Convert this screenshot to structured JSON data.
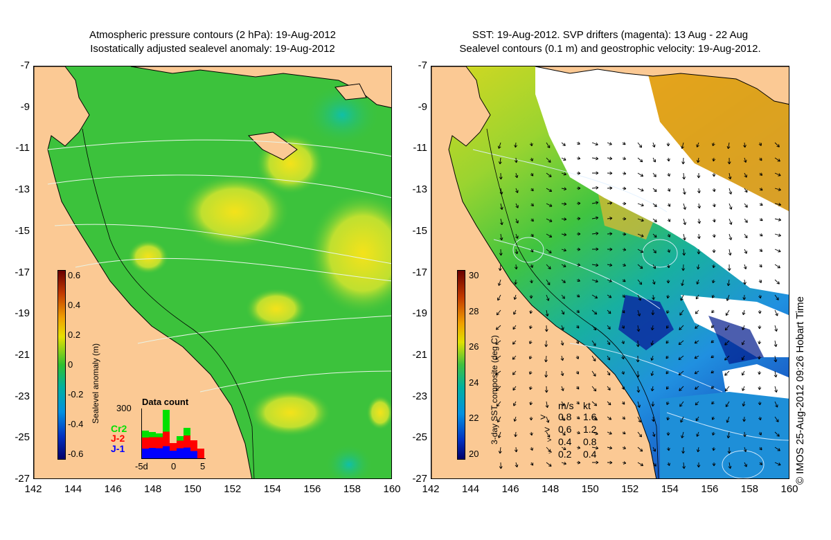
{
  "left_panel": {
    "title_line1": "Atmospheric pressure contours (2 hPa): 19-Aug-2012",
    "title_line2": "Isostatically adjusted sealevel anomaly: 19-Aug-2012",
    "colorbar": {
      "label": "Sealevel anomaly (m)",
      "ticks": [
        "0.6",
        "0.4",
        "0.2",
        "0",
        "-0.2",
        "-0.4",
        "-0.6"
      ]
    },
    "data_count": {
      "title": "Data count",
      "ymax_label": "300",
      "series": [
        {
          "name": "Cr2",
          "color": "#00e000"
        },
        {
          "name": "J-2",
          "color": "#ff0000"
        },
        {
          "name": "J-1",
          "color": "#0000ff"
        }
      ],
      "x_labels": [
        "-5d",
        "0",
        "5"
      ]
    }
  },
  "right_panel": {
    "title_line1": "SST: 19-Aug-2012. SVP drifters (magenta): 13 Aug - 22 Aug",
    "title_line2": "Sealevel contours (0.1 m) and geostrophic velocity: 19-Aug-2012.",
    "colorbar": {
      "label": "3-day SST composite (deg C)",
      "ticks": [
        "30",
        "28",
        "26",
        "24",
        "22",
        "20"
      ]
    },
    "velocity_legend": {
      "header_ms": "m/s",
      "header_kt": "kt",
      "rows": [
        {
          "ms": "0.8",
          "kt": "1.6"
        },
        {
          "ms": "0.6",
          "kt": "1.2"
        },
        {
          "ms": "0.4",
          "kt": "0.8"
        },
        {
          "ms": "0.2",
          "kt": "0.4"
        }
      ]
    },
    "credit": "© IMOS 25-Aug-2012 09:26 Hobart Time"
  },
  "axes": {
    "y_ticks": [
      "-7",
      "-9",
      "-11",
      "-13",
      "-15",
      "-17",
      "-19",
      "-21",
      "-23",
      "-25",
      "-27"
    ],
    "x_ticks": [
      "142",
      "144",
      "146",
      "148",
      "150",
      "152",
      "154",
      "156",
      "158",
      "160"
    ],
    "lon_range": [
      142,
      160
    ],
    "lat_range": [
      -27,
      -7
    ]
  },
  "colors": {
    "land": "#fbc994",
    "sea_anomaly_base": "#3cc23c",
    "sea_anomaly_high": "#f0e000",
    "sst_warm": "#ee9f1a",
    "sst_cool": "#1e8fd8",
    "sst_cold": "#001a8c",
    "cloud": "#ffffff"
  }
}
